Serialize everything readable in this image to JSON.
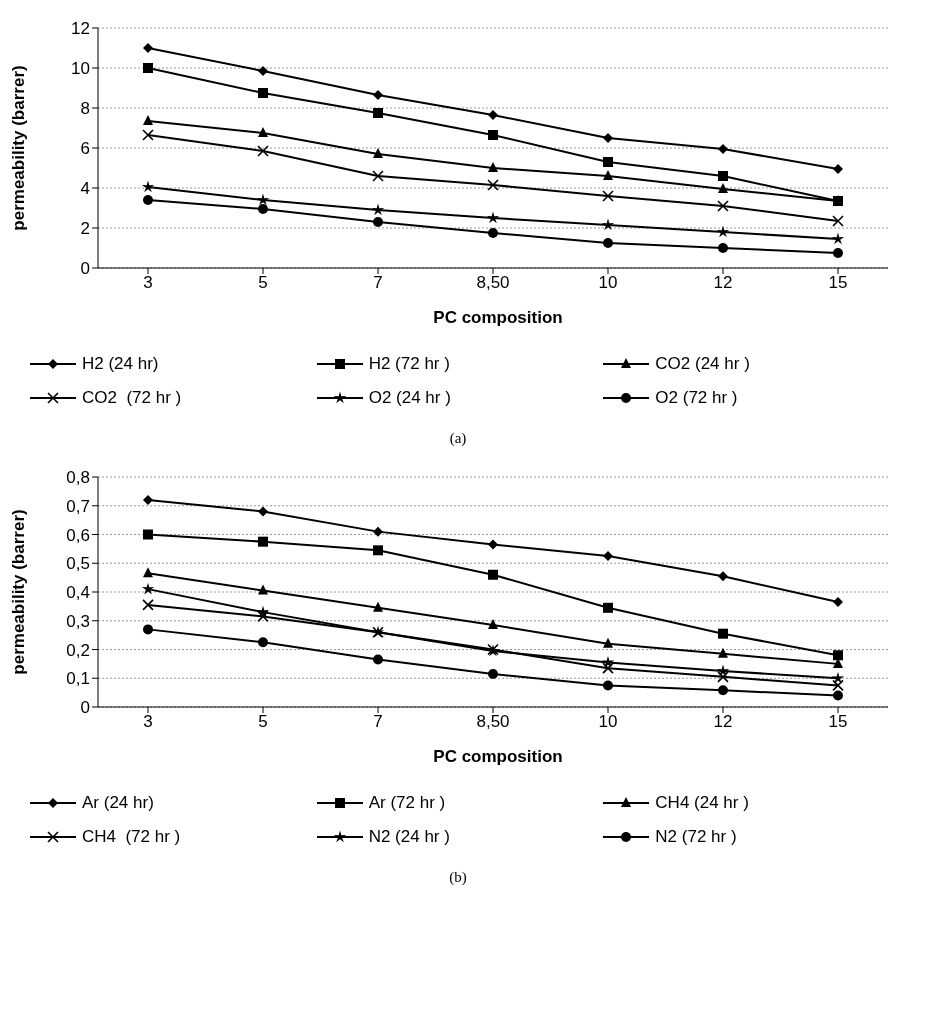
{
  "chart_data": [
    {
      "type": "line",
      "xlabel": "PC composition",
      "ylabel": "permeability (barrer)",
      "categories": [
        "3",
        "5",
        "7",
        "8,50",
        "10",
        "12",
        "15"
      ],
      "ylim": [
        0,
        12
      ],
      "yticks": [
        0,
        2,
        4,
        6,
        8,
        10,
        12
      ],
      "grid": "y",
      "legend": "bottom",
      "annotations": [
        "(a)"
      ],
      "series": [
        {
          "name": "H2 (24 hr)",
          "color": "#000000",
          "marker": "diamond",
          "values": [
            11,
            9.85,
            8.65,
            7.65,
            6.5,
            5.95,
            4.95
          ]
        },
        {
          "name": "H2 (72 hr )",
          "color": "#000000",
          "marker": "square",
          "values": [
            10,
            8.75,
            7.75,
            6.65,
            5.3,
            4.6,
            3.35
          ]
        },
        {
          "name": "CO2 (24 hr )",
          "color": "#000000",
          "marker": "triangle",
          "values": [
            7.35,
            6.75,
            5.7,
            5.0,
            4.6,
            3.95,
            3.35
          ]
        },
        {
          "name": "CO2  (72 hr )",
          "color": "#000000",
          "marker": "cross",
          "values": [
            6.65,
            5.85,
            4.6,
            4.15,
            3.6,
            3.1,
            2.35
          ]
        },
        {
          "name": "O2 (24 hr )",
          "color": "#000000",
          "marker": "star",
          "values": [
            4.05,
            3.4,
            2.9,
            2.5,
            2.15,
            1.8,
            1.45
          ]
        },
        {
          "name": "O2 (72 hr )",
          "color": "#000000",
          "marker": "circle",
          "values": [
            3.4,
            2.95,
            2.3,
            1.75,
            1.25,
            1.0,
            0.75
          ]
        }
      ]
    },
    {
      "type": "line",
      "xlabel": "PC composition",
      "ylabel": "permeability (barrer)",
      "categories": [
        "3",
        "5",
        "7",
        "8,50",
        "10",
        "12",
        "15"
      ],
      "ylim": [
        0,
        0.8
      ],
      "yticks": [
        0,
        {
          "value": 0.1,
          "label": "0,1"
        },
        {
          "value": 0.2,
          "label": "0,2"
        },
        {
          "value": 0.3,
          "label": "0,3"
        },
        {
          "value": 0.4,
          "label": "0,4"
        },
        {
          "value": 0.5,
          "label": "0,5"
        },
        {
          "value": 0.6,
          "label": "0,6"
        },
        {
          "value": 0.7,
          "label": "0,7"
        },
        {
          "value": 0.8,
          "label": "0,8"
        }
      ],
      "grid": "y",
      "legend": "bottom",
      "annotations": [
        "(b)"
      ],
      "series": [
        {
          "name": "Ar (24 hr)",
          "color": "#000000",
          "marker": "diamond",
          "values": [
            0.72,
            0.68,
            0.61,
            0.565,
            0.525,
            0.455,
            0.365
          ]
        },
        {
          "name": "Ar (72 hr )",
          "color": "#000000",
          "marker": "square",
          "values": [
            0.6,
            0.575,
            0.545,
            0.46,
            0.345,
            0.255,
            0.18
          ]
        },
        {
          "name": "CH4 (24 hr )",
          "color": "#000000",
          "marker": "triangle",
          "values": [
            0.465,
            0.405,
            0.345,
            0.285,
            0.22,
            0.185,
            0.15
          ]
        },
        {
          "name": "CH4  (72 hr )",
          "color": "#000000",
          "marker": "cross",
          "values": [
            0.355,
            0.315,
            0.26,
            0.2,
            0.135,
            0.105,
            0.075
          ]
        },
        {
          "name": "N2 (24 hr )",
          "color": "#000000",
          "marker": "star",
          "values": [
            0.41,
            0.33,
            0.26,
            0.195,
            0.155,
            0.125,
            0.1
          ]
        },
        {
          "name": "N2 (72 hr )",
          "color": "#000000",
          "marker": "circle",
          "values": [
            0.27,
            0.225,
            0.165,
            0.115,
            0.075,
            0.058,
            0.04
          ]
        }
      ]
    }
  ]
}
